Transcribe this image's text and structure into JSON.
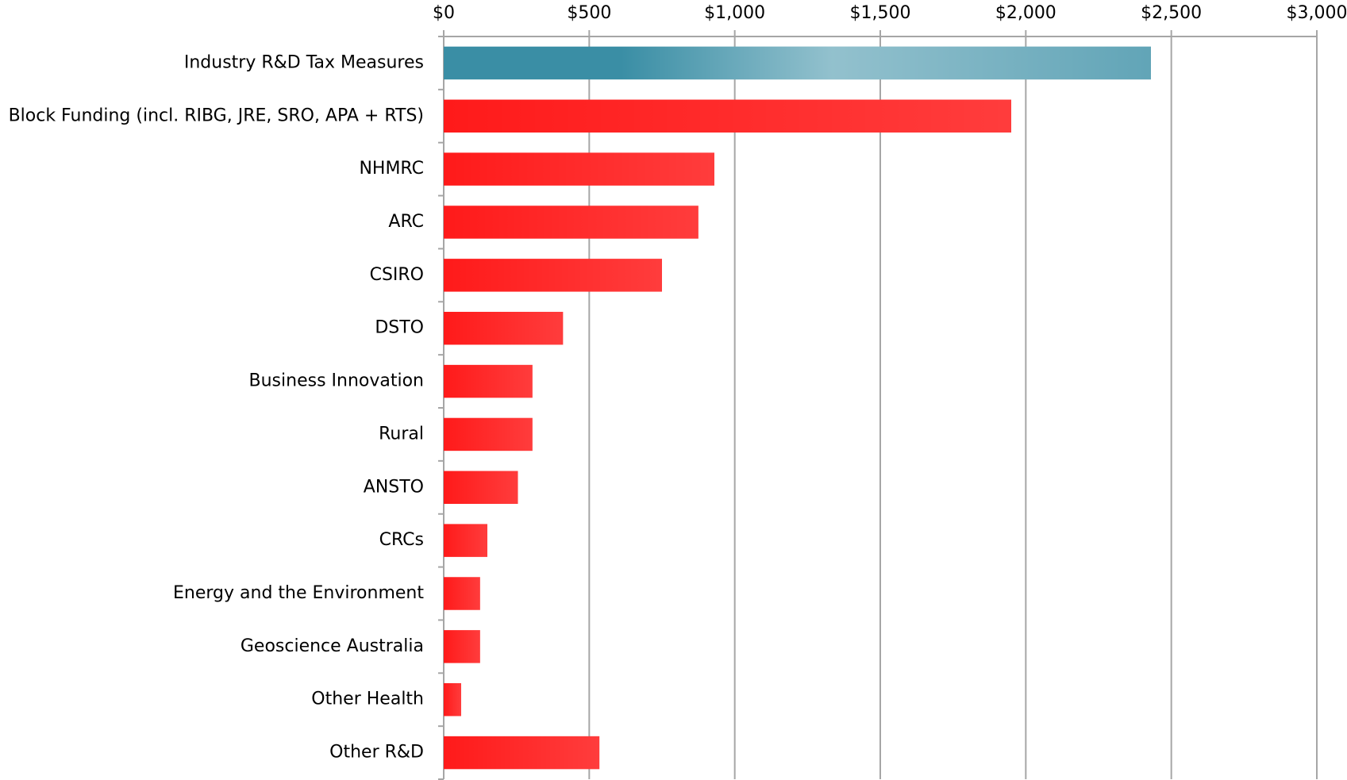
{
  "chart_data": {
    "type": "bar",
    "orientation": "horizontal",
    "categories": [
      "Industry R&D Tax Measures",
      "Block Funding (incl. RIBG, JRE, SRO, APA + RTS)",
      "NHMRC",
      "ARC",
      "CSIRO",
      "DSTO",
      "Business Innovation",
      "Rural",
      "ANSTO",
      "CRCs",
      "Energy and the Environment",
      "Geoscience Australia",
      "Other Health",
      "Other R&D"
    ],
    "values": [
      2430,
      1950,
      930,
      875,
      750,
      410,
      305,
      305,
      255,
      150,
      125,
      125,
      60,
      535
    ],
    "colors": [
      "#3a8ea5",
      "#ff1a1a",
      "#ff1a1a",
      "#ff1a1a",
      "#ff1a1a",
      "#ff1a1a",
      "#ff1a1a",
      "#ff1a1a",
      "#ff1a1a",
      "#ff1a1a",
      "#ff1a1a",
      "#ff1a1a",
      "#ff1a1a",
      "#ff1a1a"
    ],
    "xlim": [
      0,
      3000
    ],
    "xticks": [
      {
        "value": 0,
        "label": "$0"
      },
      {
        "value": 500,
        "label": "$500"
      },
      {
        "value": 1000,
        "label": "$1,000"
      },
      {
        "value": 1500,
        "label": "$1,500"
      },
      {
        "value": 2000,
        "label": "$2,000"
      },
      {
        "value": 2500,
        "label": "$2,500"
      },
      {
        "value": 3000,
        "label": "$3,000"
      }
    ],
    "grid": true
  }
}
